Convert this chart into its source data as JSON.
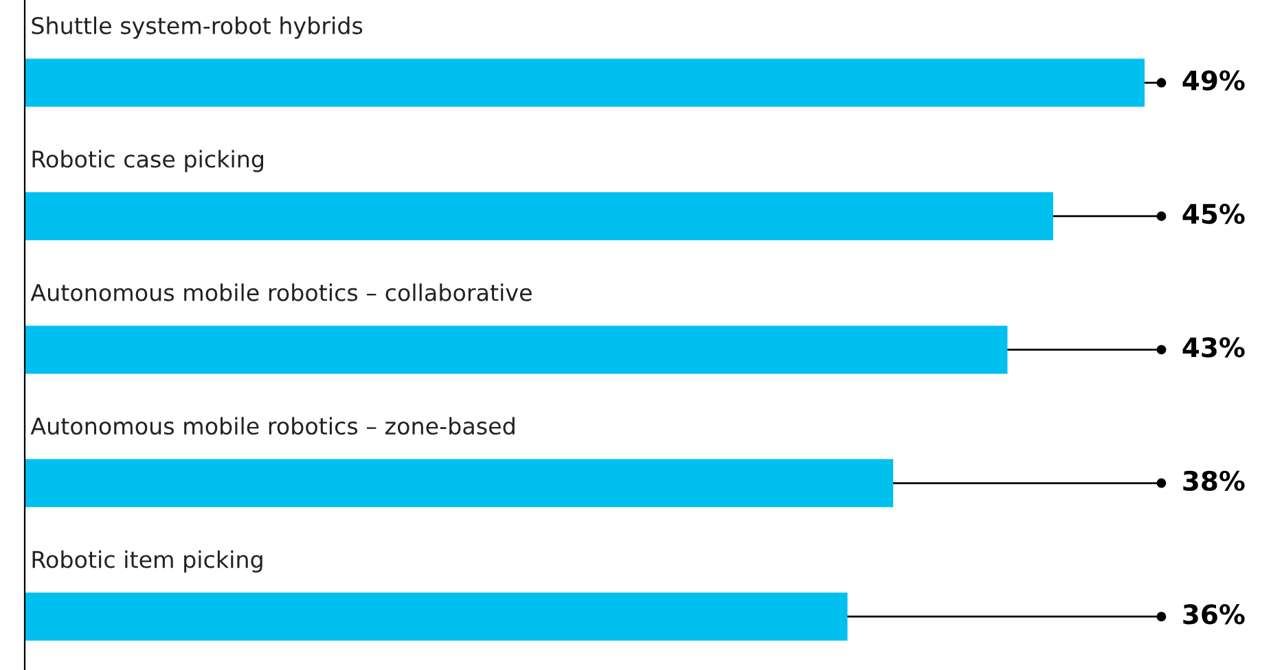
{
  "chart_data": {
    "type": "bar",
    "orientation": "horizontal",
    "categories": [
      "Shuttle system-robot hybrids",
      "Robotic case picking",
      "Autonomous mobile robotics – collaborative",
      "Autonomous mobile robotics – zone-based",
      "Robotic item picking"
    ],
    "values": [
      49,
      45,
      43,
      38,
      36
    ],
    "value_labels": [
      "49%",
      "45%",
      "43%",
      "38%",
      "36%"
    ],
    "color": "#00c0f0"
  }
}
